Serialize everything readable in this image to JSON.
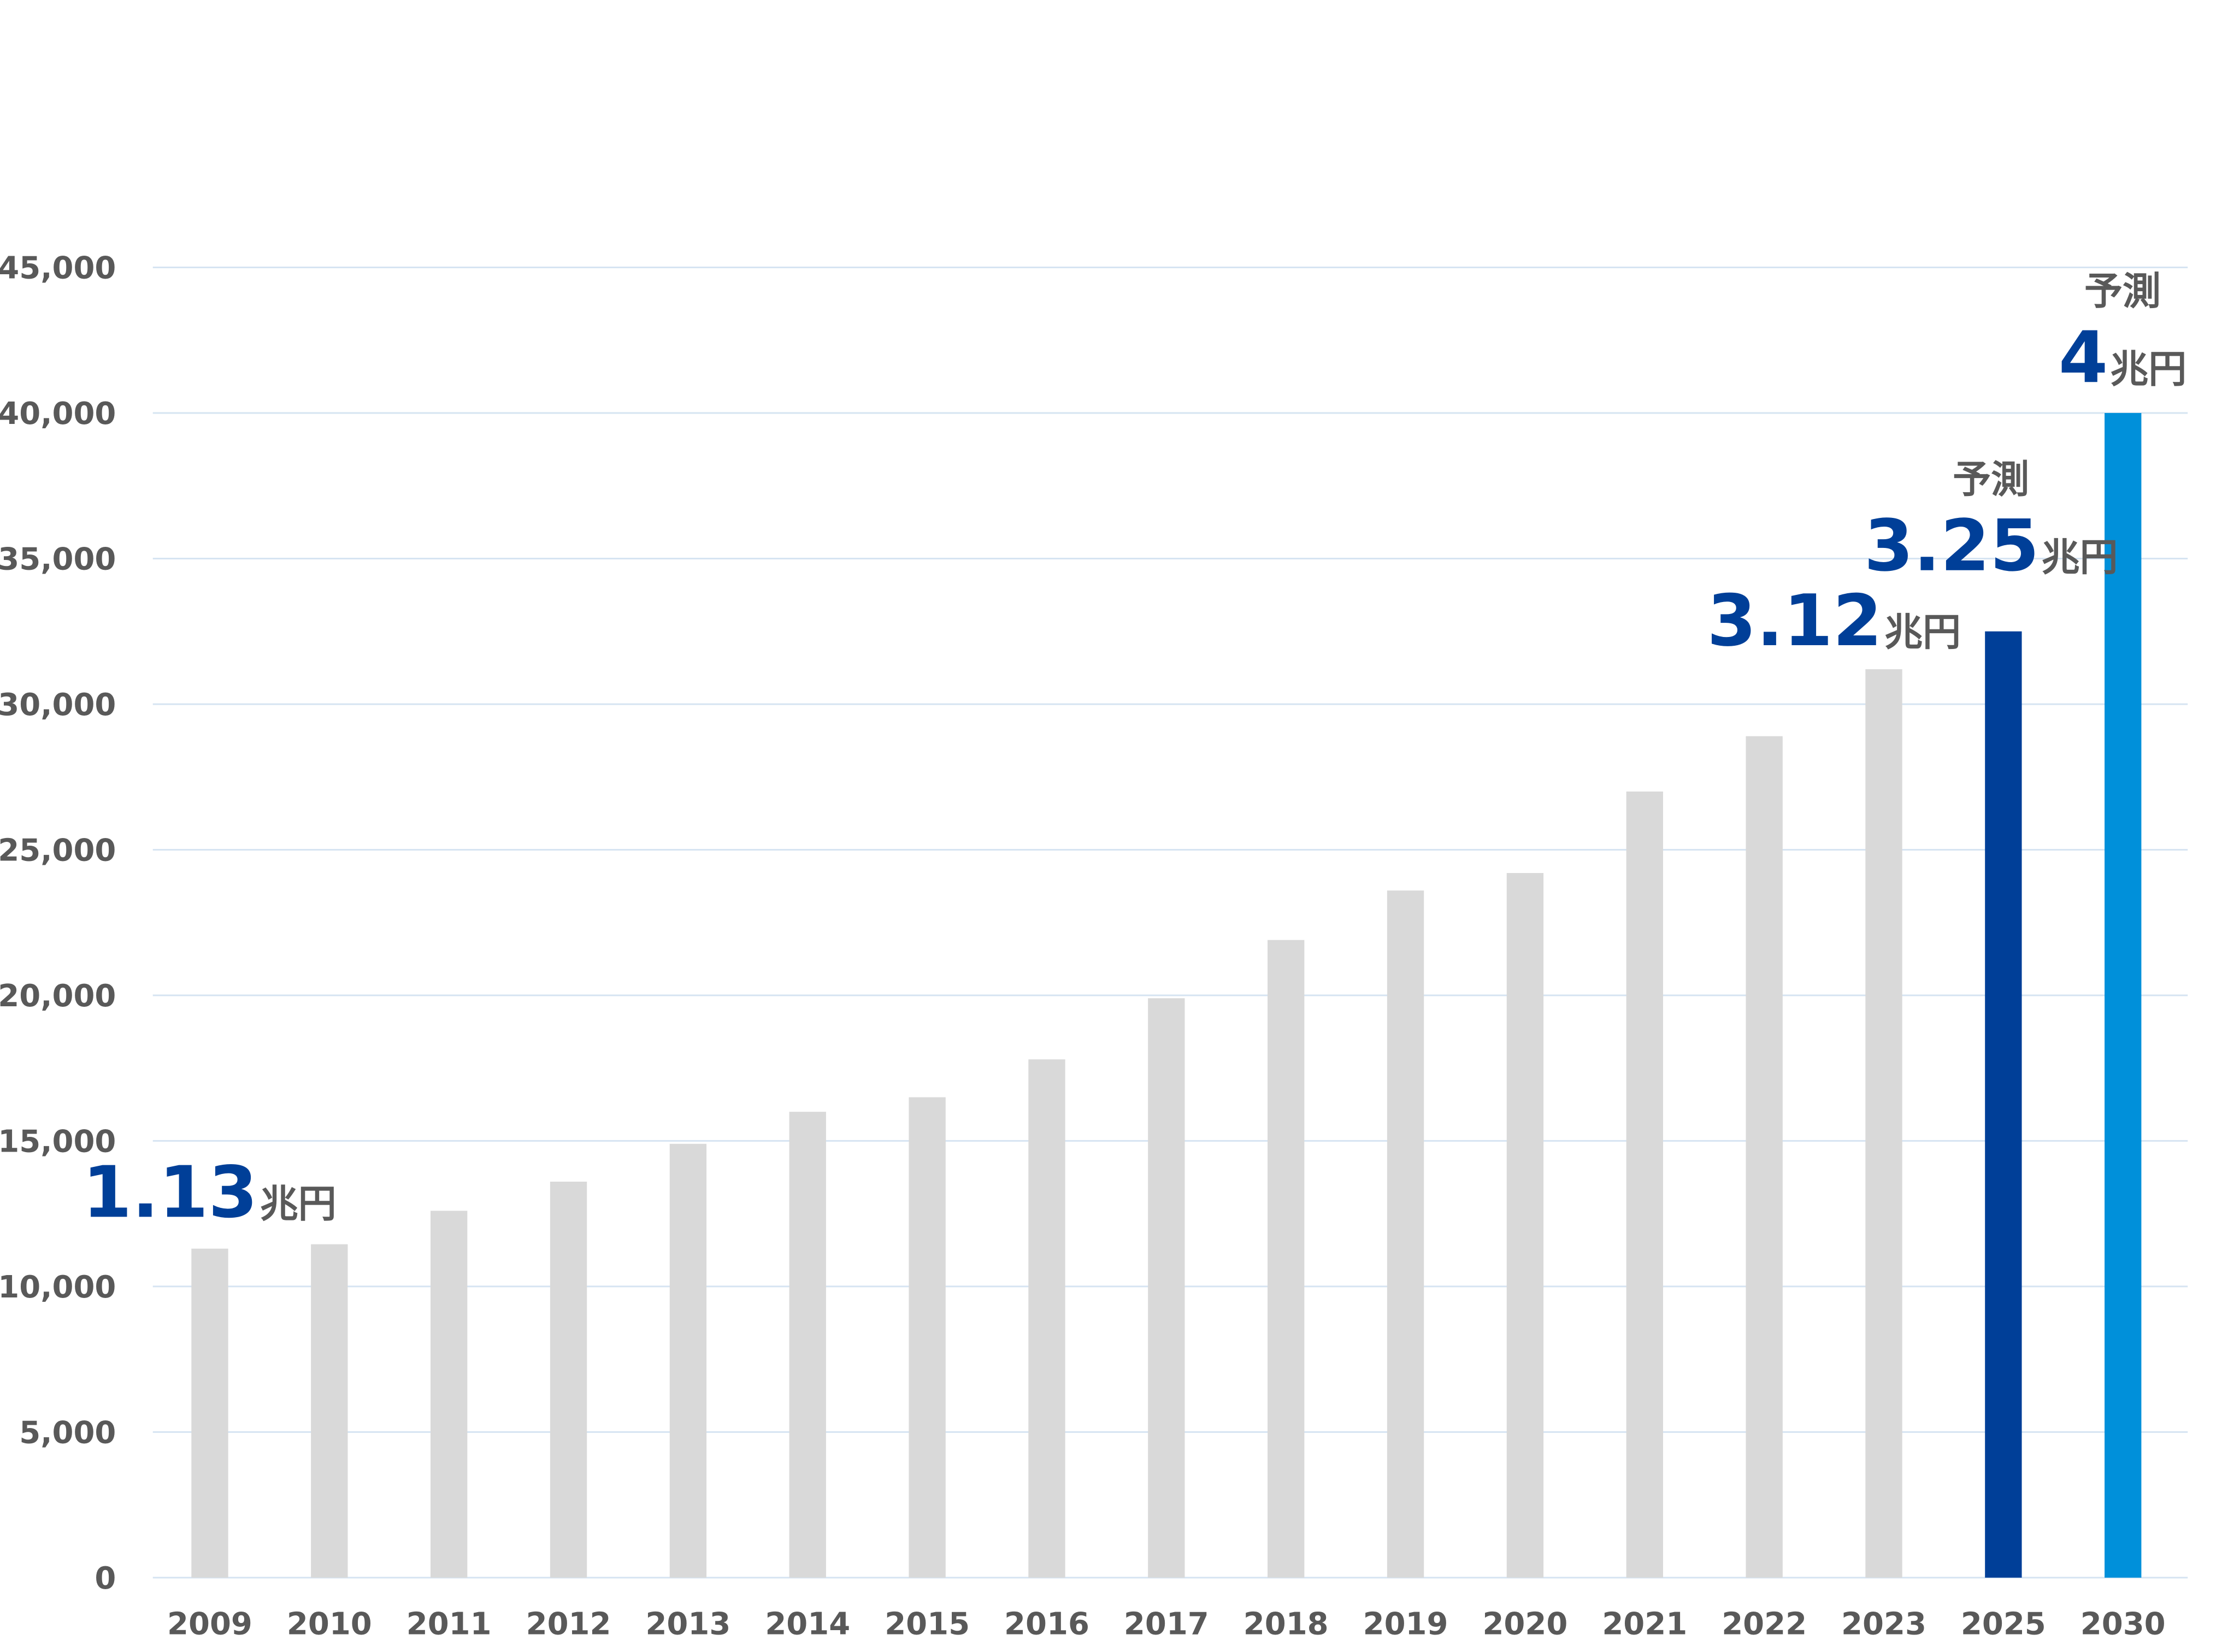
{
  "chart_data": {
    "type": "bar",
    "categories": [
      "2009",
      "2010",
      "2011",
      "2012",
      "2013",
      "2014",
      "2015",
      "2016",
      "2017",
      "2018",
      "2019",
      "2020",
      "2021",
      "2022",
      "2023",
      "2025",
      "2030"
    ],
    "values": [
      11300,
      11450,
      12600,
      13600,
      14900,
      16000,
      16500,
      17800,
      19900,
      21900,
      23600,
      24200,
      27000,
      28900,
      31200,
      32500,
      40000
    ],
    "bar_colors": [
      "#d9d9d9",
      "#d9d9d9",
      "#d9d9d9",
      "#d9d9d9",
      "#d9d9d9",
      "#d9d9d9",
      "#d9d9d9",
      "#d9d9d9",
      "#d9d9d9",
      "#d9d9d9",
      "#d9d9d9",
      "#d9d9d9",
      "#d9d9d9",
      "#d9d9d9",
      "#d9d9d9",
      "#003f98",
      "#0090da"
    ],
    "ylim": [
      0,
      45000
    ],
    "yticks": [
      0,
      5000,
      10000,
      15000,
      20000,
      25000,
      30000,
      35000,
      40000,
      45000
    ],
    "ytick_labels": [
      "0",
      "5,000",
      "10,000",
      "15,000",
      "20,000",
      "25,000",
      "30,000",
      "35,000",
      "40,000",
      "45,000"
    ],
    "grid": true,
    "annotations": [
      {
        "category": "2009",
        "value_label": "1.13",
        "unit": "兆円",
        "note": ""
      },
      {
        "category": "2023",
        "value_label": "3.12",
        "unit": "兆円",
        "note": ""
      },
      {
        "category": "2025",
        "value_label": "3.25",
        "unit": "兆円",
        "note": "予測"
      },
      {
        "category": "2030",
        "value_label": "4",
        "unit": "兆円",
        "note": "予測"
      }
    ]
  },
  "colors": {
    "bar_default": "#d9d9d9",
    "bar_2025": "#003f98",
    "bar_2030": "#0090da",
    "annotation_number": "#003f98",
    "axis_text": "#595959",
    "grid": "#d6e4f2"
  }
}
